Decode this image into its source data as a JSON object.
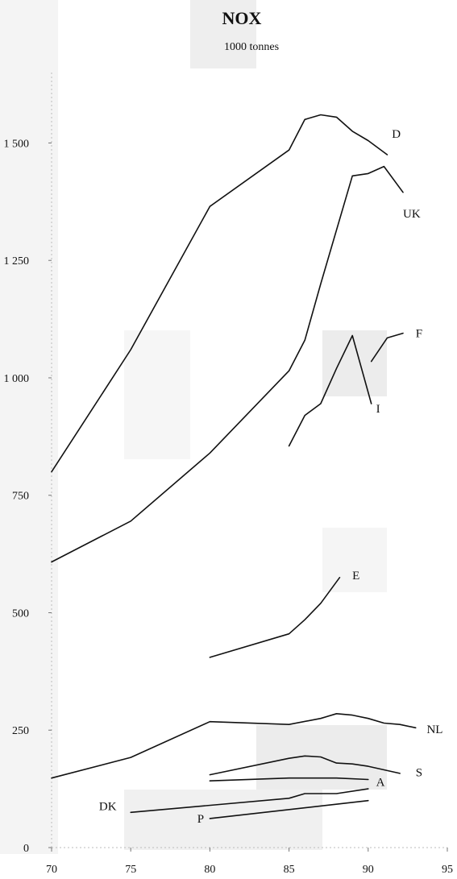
{
  "chart_data": {
    "type": "line",
    "title": "NOX",
    "subtitle": "1000 tonnes",
    "xlabel": "",
    "ylabel": "",
    "xlim": [
      70,
      95
    ],
    "ylim": [
      0,
      1650
    ],
    "x_ticks": [
      70,
      75,
      80,
      85,
      90,
      95
    ],
    "y_ticks": [
      {
        "value": 0,
        "label": "0"
      },
      {
        "value": 250,
        "label": "250"
      },
      {
        "value": 500,
        "label": "500"
      },
      {
        "value": 750,
        "label": "750"
      },
      {
        "value": 1000,
        "label": "1 000"
      },
      {
        "value": 1250,
        "label": "1 250"
      },
      {
        "value": 1500,
        "label": "1 500"
      }
    ],
    "grid": false,
    "series": [
      {
        "name": "D",
        "label_pos": [
          91.5,
          1520
        ],
        "points": [
          [
            70,
            800
          ],
          [
            75,
            1060
          ],
          [
            80,
            1365
          ],
          [
            85,
            1485
          ],
          [
            86,
            1550
          ],
          [
            87,
            1560
          ],
          [
            88,
            1555
          ],
          [
            89,
            1525
          ],
          [
            90,
            1505
          ],
          [
            91.2,
            1475
          ]
        ]
      },
      {
        "name": "UK",
        "label_pos": [
          92.2,
          1350
        ],
        "points": [
          [
            70,
            608
          ],
          [
            75,
            695
          ],
          [
            80,
            840
          ],
          [
            85,
            1015
          ],
          [
            86,
            1080
          ],
          [
            87,
            1200
          ],
          [
            89,
            1430
          ],
          [
            90,
            1435
          ],
          [
            91,
            1450
          ],
          [
            92.2,
            1395
          ]
        ]
      },
      {
        "name": "F",
        "label_pos": [
          93,
          1095
        ],
        "points": [
          [
            90.2,
            1035
          ],
          [
            91.2,
            1085
          ],
          [
            92.2,
            1095
          ]
        ]
      },
      {
        "name": "I",
        "label_pos": [
          90.5,
          935
        ],
        "points": [
          [
            85,
            855
          ],
          [
            86,
            920
          ],
          [
            87,
            945
          ],
          [
            88,
            1020
          ],
          [
            89,
            1090
          ],
          [
            90.2,
            945
          ]
        ]
      },
      {
        "name": "E",
        "label_pos": [
          89,
          580
        ],
        "points": [
          [
            80,
            405
          ],
          [
            85,
            455
          ],
          [
            86,
            485
          ],
          [
            87,
            520
          ],
          [
            88.2,
            575
          ]
        ]
      },
      {
        "name": "NL",
        "label_pos": [
          93.7,
          252
        ],
        "points": [
          [
            70,
            148
          ],
          [
            75,
            192
          ],
          [
            80,
            268
          ],
          [
            85,
            262
          ],
          [
            87,
            275
          ],
          [
            88,
            285
          ],
          [
            89,
            282
          ],
          [
            90,
            275
          ],
          [
            91,
            265
          ],
          [
            92,
            262
          ],
          [
            93,
            255
          ]
        ]
      },
      {
        "name": "S",
        "label_pos": [
          93,
          160
        ],
        "points": [
          [
            80,
            155
          ],
          [
            85,
            190
          ],
          [
            86,
            195
          ],
          [
            87,
            193
          ],
          [
            88,
            180
          ],
          [
            89,
            178
          ],
          [
            90,
            173
          ],
          [
            92,
            158
          ]
        ]
      },
      {
        "name": "A",
        "label_pos": [
          90.5,
          140
        ],
        "points": [
          [
            80,
            142
          ],
          [
            85,
            148
          ],
          [
            88,
            148
          ],
          [
            90,
            145
          ]
        ]
      },
      {
        "name": "DK",
        "label_pos": [
          73,
          88
        ],
        "points": [
          [
            75,
            75
          ],
          [
            85,
            105
          ],
          [
            86,
            115
          ],
          [
            88,
            115
          ],
          [
            90,
            125
          ]
        ]
      },
      {
        "name": "P",
        "label_pos": [
          79.2,
          62
        ],
        "points": [
          [
            80,
            62
          ],
          [
            90,
            100
          ]
        ]
      }
    ]
  }
}
